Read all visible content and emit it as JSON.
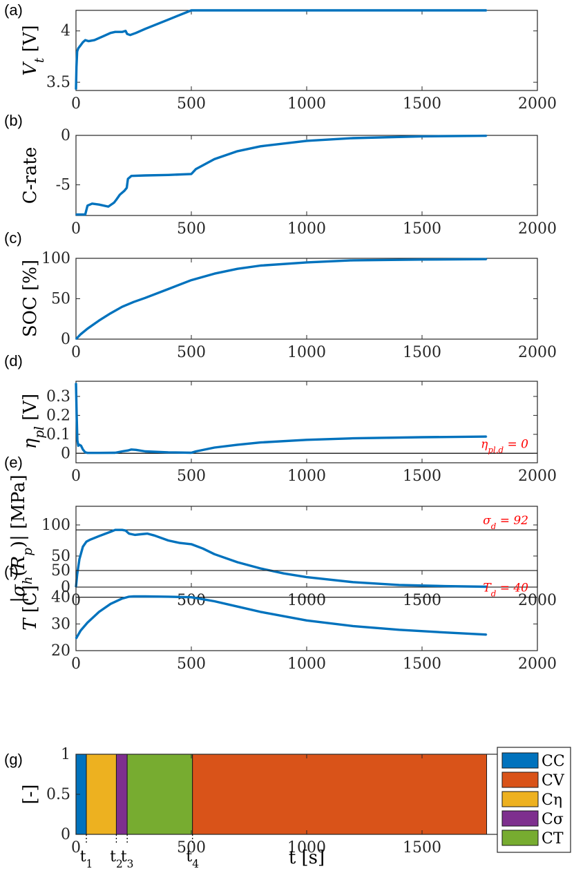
{
  "chart_data": [
    {
      "id": "a",
      "panel_label": "(a)",
      "type": "line",
      "ylabel": "V_t [V]",
      "xlim": [
        0,
        2000
      ],
      "ylim": [
        3.42,
        4.2
      ],
      "xticks": [
        0,
        500,
        1000,
        1500,
        2000
      ],
      "xtick_labels": [
        "0",
        "500",
        "1000",
        "1500",
        "2000"
      ],
      "yticks": [
        3.5,
        4
      ],
      "ytick_labels": [
        "3.5",
        "4"
      ],
      "series": [
        {
          "name": "V_t",
          "color": "#0072BD",
          "x": [
            0,
            2,
            5,
            10,
            20,
            30,
            40,
            55,
            80,
            120,
            150,
            170,
            200,
            215,
            222,
            235,
            260,
            300,
            400,
            500,
            600,
            800,
            1000,
            1200,
            1500,
            1780
          ],
          "y": [
            3.43,
            3.65,
            3.8,
            3.83,
            3.86,
            3.89,
            3.91,
            3.9,
            3.91,
            3.95,
            3.98,
            3.99,
            3.99,
            4.0,
            3.97,
            3.96,
            3.98,
            4.02,
            4.11,
            4.2,
            4.2,
            4.2,
            4.2,
            4.2,
            4.2,
            4.2
          ]
        }
      ]
    },
    {
      "id": "b",
      "panel_label": "(b)",
      "type": "line",
      "ylabel": "C-rate",
      "xlim": [
        0,
        2000
      ],
      "ylim": [
        -8.1,
        0
      ],
      "xticks": [
        0,
        500,
        1000,
        1500,
        2000
      ],
      "xtick_labels": [
        "0",
        "500",
        "1000",
        "1500",
        "2000"
      ],
      "yticks": [
        -5,
        0
      ],
      "ytick_labels": [
        "-5",
        "0"
      ],
      "series": [
        {
          "name": "C-rate",
          "color": "#0072BD",
          "x": [
            0,
            40,
            50,
            70,
            100,
            140,
            165,
            175,
            190,
            210,
            220,
            225,
            240,
            300,
            400,
            500,
            520,
            600,
            700,
            800,
            1000,
            1200,
            1500,
            1780
          ],
          "y": [
            -8.0,
            -8.0,
            -7.1,
            -6.9,
            -7.0,
            -7.2,
            -6.8,
            -6.5,
            -6.0,
            -5.6,
            -5.3,
            -4.4,
            -4.1,
            -4.05,
            -4.0,
            -3.9,
            -3.4,
            -2.4,
            -1.6,
            -1.1,
            -0.55,
            -0.28,
            -0.1,
            -0.04
          ]
        }
      ]
    },
    {
      "id": "c",
      "panel_label": "(c)",
      "type": "line",
      "ylabel": "SOC [%]",
      "xlim": [
        0,
        2000
      ],
      "ylim": [
        0,
        100
      ],
      "xticks": [
        0,
        500,
        1000,
        1500,
        2000
      ],
      "xtick_labels": [
        "0",
        "500",
        "1000",
        "1500",
        "2000"
      ],
      "yticks": [
        0,
        50,
        100
      ],
      "ytick_labels": [
        "0",
        "50",
        "100"
      ],
      "series": [
        {
          "name": "SOC",
          "color": "#0072BD",
          "x": [
            0,
            20,
            50,
            100,
            150,
            200,
            250,
            300,
            400,
            500,
            600,
            700,
            800,
            1000,
            1200,
            1500,
            1780
          ],
          "y": [
            0,
            6,
            13,
            23,
            32,
            40,
            46,
            51,
            62,
            73,
            81,
            87,
            91,
            95,
            97.5,
            98.5,
            99
          ]
        }
      ]
    },
    {
      "id": "d",
      "panel_label": "(d)",
      "type": "line",
      "ylabel": "η_pl [V]",
      "xlim": [
        0,
        2000
      ],
      "ylim": [
        -0.05,
        0.38
      ],
      "xticks": [
        0,
        500,
        1000,
        1500,
        2000
      ],
      "xtick_labels": [
        "0",
        "500",
        "1000",
        "1500",
        "2000"
      ],
      "yticks": [
        0,
        0.1,
        0.2,
        0.3
      ],
      "ytick_labels": [
        "0",
        "0.1",
        "0.2",
        "0.3"
      ],
      "threshold": 0,
      "annotation": "η_pl,d = 0",
      "series": [
        {
          "name": "eta_pl",
          "color": "#0072BD",
          "x": [
            0,
            3,
            6,
            10,
            15,
            22,
            30,
            40,
            50,
            100,
            170,
            200,
            225,
            240,
            260,
            300,
            400,
            500,
            520,
            600,
            700,
            800,
            1000,
            1200,
            1500,
            1780
          ],
          "y": [
            0.37,
            0.2,
            0.07,
            0.04,
            0.045,
            0.04,
            0.02,
            0.005,
            0.002,
            0.002,
            0.003,
            0.01,
            0.015,
            0.02,
            0.018,
            0.01,
            0.005,
            0.003,
            0.01,
            0.03,
            0.045,
            0.057,
            0.071,
            0.079,
            0.085,
            0.088
          ]
        }
      ]
    },
    {
      "id": "e",
      "panel_label": "(e)",
      "type": "line",
      "ylabel": "|σ_h(R_p)| [MPa]",
      "xlim": [
        0,
        2000
      ],
      "ylim": [
        0,
        130
      ],
      "xticks": [
        0,
        500,
        1000,
        1500,
        2000
      ],
      "xtick_labels": [
        "0",
        "500",
        "1000",
        "1500",
        "2000"
      ],
      "yticks": [
        0,
        50,
        100
      ],
      "ytick_labels": [
        "0",
        "50",
        "100"
      ],
      "threshold": 92,
      "annotation": "σ_d = 92",
      "series": [
        {
          "name": "sigma_h",
          "color": "#0072BD",
          "x": [
            0,
            5,
            15,
            30,
            45,
            60,
            100,
            150,
            170,
            200,
            215,
            230,
            255,
            280,
            310,
            340,
            400,
            450,
            500,
            550,
            600,
            700,
            800,
            900,
            1000,
            1200,
            1400,
            1600,
            1780
          ],
          "y": [
            0,
            20,
            45,
            65,
            73,
            76,
            82,
            89,
            92,
            92,
            91,
            86,
            84,
            85,
            86,
            83,
            75,
            71,
            69,
            62,
            53,
            40,
            30,
            22,
            16,
            8,
            3.5,
            1.5,
            0.5
          ]
        }
      ]
    },
    {
      "id": "f",
      "panel_label": "(f)",
      "type": "line",
      "ylabel": "T [C]",
      "xlim": [
        0,
        2000
      ],
      "ylim": [
        20,
        50
      ],
      "xticks": [
        0,
        500,
        1000,
        1500,
        2000
      ],
      "xtick_labels": [
        "0",
        "500",
        "1000",
        "1500",
        "2000"
      ],
      "yticks": [
        20,
        30,
        40,
        50
      ],
      "ytick_labels": [
        "20",
        "30",
        "40",
        "50"
      ],
      "threshold": 40,
      "annotation": "T_d = 40",
      "series": [
        {
          "name": "T",
          "color": "#0072BD",
          "x": [
            0,
            20,
            50,
            100,
            150,
            200,
            230,
            250,
            300,
            400,
            500,
            600,
            700,
            800,
            1000,
            1200,
            1400,
            1600,
            1780
          ],
          "y": [
            24.5,
            27.5,
            30.5,
            34.5,
            37.5,
            39.5,
            40.2,
            40.3,
            40.3,
            40.2,
            40.0,
            38.5,
            36.5,
            34.5,
            31.3,
            29.2,
            27.8,
            26.8,
            26.0
          ]
        }
      ]
    },
    {
      "id": "g",
      "panel_label": "(g)",
      "type": "bar",
      "ylabel": "[-]",
      "xlabel": "t [s]",
      "xlim": [
        0,
        2000
      ],
      "ylim": [
        0,
        1
      ],
      "xticks": [
        0,
        500,
        1000,
        1500,
        2000
      ],
      "xtick_labels": [
        "0",
        "500",
        "1000",
        "1500",
        "2000"
      ],
      "yticks": [
        0,
        0.5,
        1
      ],
      "ytick_labels": [
        "0",
        "0.5",
        "1"
      ],
      "segments": [
        {
          "mode": "CC",
          "start": 0,
          "end": 45,
          "color": "#0072BD"
        },
        {
          "mode": "Cη",
          "start": 45,
          "end": 175,
          "color": "#EDB120"
        },
        {
          "mode": "Cσ",
          "start": 175,
          "end": 222,
          "color": "#7E2F8E"
        },
        {
          "mode": "CT",
          "start": 222,
          "end": 505,
          "color": "#77AC30"
        },
        {
          "mode": "CV",
          "start": 505,
          "end": 1780,
          "color": "#D95319"
        }
      ],
      "legend": {
        "position": "top-right",
        "entries": [
          {
            "label": "CC",
            "color": "#0072BD"
          },
          {
            "label": "CV",
            "color": "#D95319"
          },
          {
            "label": "Cη",
            "color": "#EDB120"
          },
          {
            "label": "Cσ",
            "color": "#7E2F8E"
          },
          {
            "label": "CT",
            "color": "#77AC30"
          }
        ]
      },
      "time_markers": [
        {
          "label": "t1",
          "x": 45
        },
        {
          "label": "t2",
          "x": 175
        },
        {
          "label": "t3",
          "x": 222
        },
        {
          "label": "t4",
          "x": 505
        }
      ]
    }
  ]
}
